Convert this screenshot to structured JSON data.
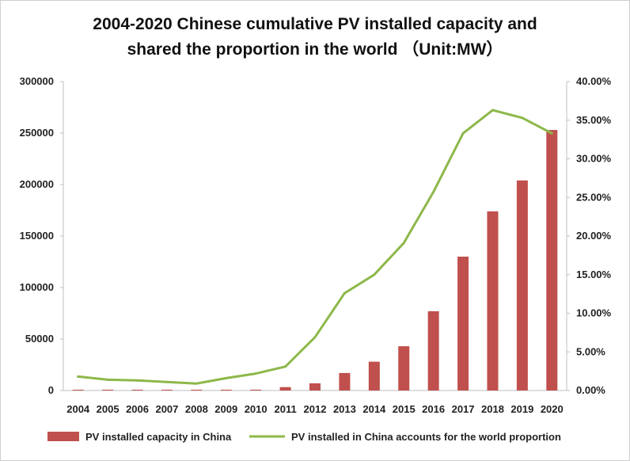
{
  "chart_data": {
    "type": "bar",
    "title_line1": "2004-2020 Chinese cumulative PV installed capacity and",
    "title_line2": "shared the proportion in the world （Unit:MW）",
    "categories": [
      "2004",
      "2005",
      "2006",
      "2007",
      "2008",
      "2009",
      "2010",
      "2011",
      "2012",
      "2013",
      "2014",
      "2015",
      "2016",
      "2017",
      "2018",
      "2019",
      "2020"
    ],
    "series": [
      {
        "name": "PV installed capacity in China",
        "type": "bar",
        "axis": "left",
        "color": "#c0504d",
        "values": [
          65,
          70,
          80,
          100,
          140,
          300,
          800,
          3300,
          7000,
          17000,
          28000,
          43000,
          77000,
          130000,
          174000,
          204000,
          253000
        ]
      },
      {
        "name": "PV installed in China accounts for the world proportion",
        "type": "line",
        "axis": "right",
        "color": "#8db84a",
        "values": [
          1.8,
          1.4,
          1.3,
          1.1,
          0.9,
          1.6,
          2.2,
          3.1,
          6.9,
          12.6,
          15.0,
          19.1,
          25.7,
          33.3,
          36.3,
          35.3,
          33.3
        ]
      }
    ],
    "y_left": {
      "min": 0,
      "max": 300000,
      "ticks": [
        "0",
        "50000",
        "100000",
        "150000",
        "200000",
        "250000",
        "300000"
      ]
    },
    "y_right": {
      "min": 0,
      "max": 40,
      "ticks": [
        "0.00%",
        "5.00%",
        "10.00%",
        "15.00%",
        "20.00%",
        "25.00%",
        "30.00%",
        "35.00%",
        "40.00%"
      ]
    },
    "legend_position": "bottom",
    "grid": false
  }
}
